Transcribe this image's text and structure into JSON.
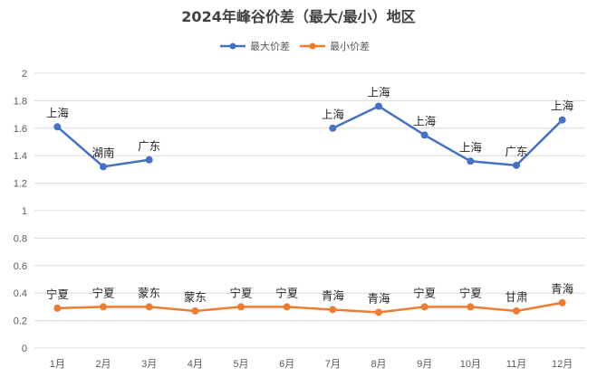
{
  "chart_data": {
    "type": "line",
    "title": "2024年峰谷价差（最大/最小）地区",
    "categories": [
      "1月",
      "2月",
      "3月",
      "4月",
      "5月",
      "6月",
      "7月",
      "8月",
      "9月",
      "10月",
      "11月",
      "12月"
    ],
    "ylim": [
      0,
      2
    ],
    "yticks": [
      "0",
      "0.2",
      "0.4",
      "0.6",
      "0.8",
      "1",
      "1.2",
      "1.4",
      "1.6",
      "1.8",
      "2"
    ],
    "grid": true,
    "legend_position": "top-center",
    "series": [
      {
        "name": "最大价差",
        "color": "#4472c4",
        "values": [
          1.61,
          1.32,
          1.37,
          null,
          null,
          null,
          1.6,
          1.76,
          1.55,
          1.36,
          1.33,
          1.66
        ],
        "labels": [
          "上海",
          "湖南",
          "广东",
          "",
          "",
          "",
          "上海",
          "上海",
          "上海",
          "上海",
          "广东",
          "上海"
        ]
      },
      {
        "name": "最小价差",
        "color": "#ed7d31",
        "values": [
          0.29,
          0.3,
          0.3,
          0.27,
          0.3,
          0.3,
          0.28,
          0.26,
          0.3,
          0.3,
          0.27,
          0.33
        ],
        "labels": [
          "宁夏",
          "宁夏",
          "蒙东",
          "蒙东",
          "宁夏",
          "宁夏",
          "青海",
          "青海",
          "宁夏",
          "宁夏",
          "甘肃",
          "青海"
        ]
      }
    ]
  }
}
